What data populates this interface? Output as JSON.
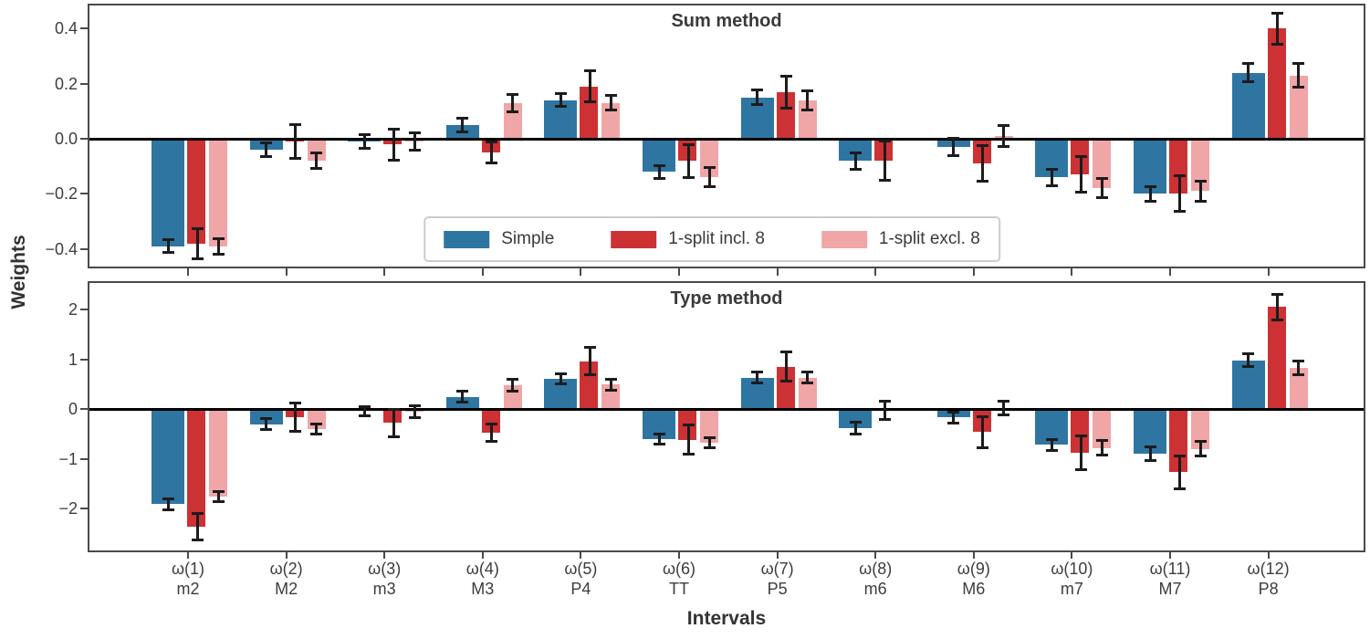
{
  "figure": {
    "ylabel": "Weights",
    "xlabel": "Intervals",
    "colors": {
      "simple": "#2f75a2",
      "incl8": "#cc3134",
      "excl8": "#f0a5a7",
      "frame": "#4a4a4a",
      "tick_label": "#3d3d3d",
      "title": "#3a3a3a",
      "zero_line": "#000000",
      "error_bar": "#1c1c1c",
      "legend_border": "#cccccc"
    },
    "legend": {
      "entries": [
        {
          "label": "Simple",
          "color": "#2f75a2"
        },
        {
          "label": "1-split incl. 8",
          "color": "#cc3134"
        },
        {
          "label": "1-split excl. 8",
          "color": "#f0a5a7"
        }
      ]
    }
  },
  "chart_data": [
    {
      "type": "bar",
      "title": "Sum method",
      "ylabel": "Weights",
      "categories": [
        "ω(1)",
        "ω(2)",
        "ω(3)",
        "ω(4)",
        "ω(5)",
        "ω(6)",
        "ω(7)",
        "ω(8)",
        "ω(9)",
        "ω(10)",
        "ω(11)",
        "ω(12)"
      ],
      "category_names": [
        "m2",
        "M2",
        "m3",
        "M3",
        "P4",
        "TT",
        "P5",
        "m6",
        "M6",
        "m7",
        "M7",
        "P8"
      ],
      "ylim": [
        -0.47,
        0.49
      ],
      "ytick_values": [
        0.4,
        0.2,
        0.0,
        -0.2,
        -0.4
      ],
      "ytick_labels": [
        "0.4",
        "0.2",
        "0.0",
        "−0.2",
        "−0.4"
      ],
      "error_bars": true,
      "grid": false,
      "legend_position": "lower center",
      "series": [
        {
          "name": "Simple",
          "color": "#2f75a2",
          "values": [
            -0.39,
            -0.04,
            -0.01,
            0.05,
            0.14,
            -0.12,
            0.15,
            -0.08,
            -0.03,
            -0.14,
            -0.2,
            0.24
          ],
          "errors": [
            0.025,
            0.027,
            0.026,
            0.026,
            0.025,
            0.025,
            0.028,
            0.031,
            0.033,
            0.031,
            0.028,
            0.036
          ]
        },
        {
          "name": "1-split incl. 8",
          "color": "#cc3134",
          "values": [
            -0.38,
            -0.01,
            -0.02,
            -0.05,
            0.19,
            -0.08,
            0.17,
            -0.08,
            -0.09,
            -0.13,
            -0.2,
            0.4
          ],
          "errors": [
            0.057,
            0.063,
            0.058,
            0.039,
            0.057,
            0.061,
            0.06,
            0.073,
            0.066,
            0.066,
            0.066,
            0.058
          ]
        },
        {
          "name": "1-split excl. 8",
          "color": "#f0a5a7",
          "values": [
            -0.39,
            -0.08,
            -0.01,
            0.13,
            0.13,
            -0.14,
            0.14,
            null,
            0.01,
            -0.18,
            -0.19,
            0.23
          ],
          "errors": [
            0.029,
            0.029,
            0.033,
            0.033,
            0.029,
            0.037,
            0.036,
            null,
            0.039,
            0.036,
            0.038,
            0.044
          ]
        }
      ]
    },
    {
      "type": "bar",
      "title": "Type method",
      "ylabel": "Weights",
      "categories": [
        "ω(1)",
        "ω(2)",
        "ω(3)",
        "ω(4)",
        "ω(5)",
        "ω(6)",
        "ω(7)",
        "ω(8)",
        "ω(9)",
        "ω(10)",
        "ω(11)",
        "ω(12)"
      ],
      "category_names": [
        "m2",
        "M2",
        "m3",
        "M3",
        "P4",
        "TT",
        "P5",
        "m6",
        "M6",
        "m7",
        "M7",
        "P8"
      ],
      "ylim": [
        -2.87,
        2.53
      ],
      "ytick_values": [
        2,
        1,
        0,
        -1,
        -2
      ],
      "ytick_labels": [
        "2",
        "1",
        "0",
        "−1",
        "−2"
      ],
      "error_bars": true,
      "grid": false,
      "series": [
        {
          "name": "Simple",
          "color": "#2f75a2",
          "values": [
            -1.91,
            -0.31,
            -0.04,
            0.24,
            0.61,
            -0.6,
            0.63,
            -0.38,
            -0.17,
            -0.72,
            -0.9,
            0.98
          ],
          "errors": [
            0.12,
            0.12,
            0.1,
            0.12,
            0.11,
            0.11,
            0.12,
            0.13,
            0.12,
            0.12,
            0.15,
            0.14
          ]
        },
        {
          "name": "1-split incl. 8",
          "color": "#cc3134",
          "values": [
            -2.37,
            -0.17,
            -0.28,
            -0.48,
            0.96,
            -0.62,
            0.85,
            -0.03,
            -0.46,
            -0.88,
            -1.27,
            2.05
          ],
          "errors": [
            0.28,
            0.29,
            0.28,
            0.18,
            0.29,
            0.3,
            0.3,
            0.19,
            0.32,
            0.35,
            0.34,
            0.27
          ]
        },
        {
          "name": "1-split excl. 8",
          "color": "#f0a5a7",
          "values": [
            -1.77,
            -0.4,
            -0.06,
            0.47,
            0.49,
            -0.67,
            0.63,
            null,
            0.02,
            -0.78,
            -0.8,
            0.82
          ],
          "errors": [
            0.11,
            0.11,
            0.13,
            0.13,
            0.12,
            0.11,
            0.12,
            null,
            0.14,
            0.16,
            0.15,
            0.15
          ]
        }
      ]
    }
  ]
}
